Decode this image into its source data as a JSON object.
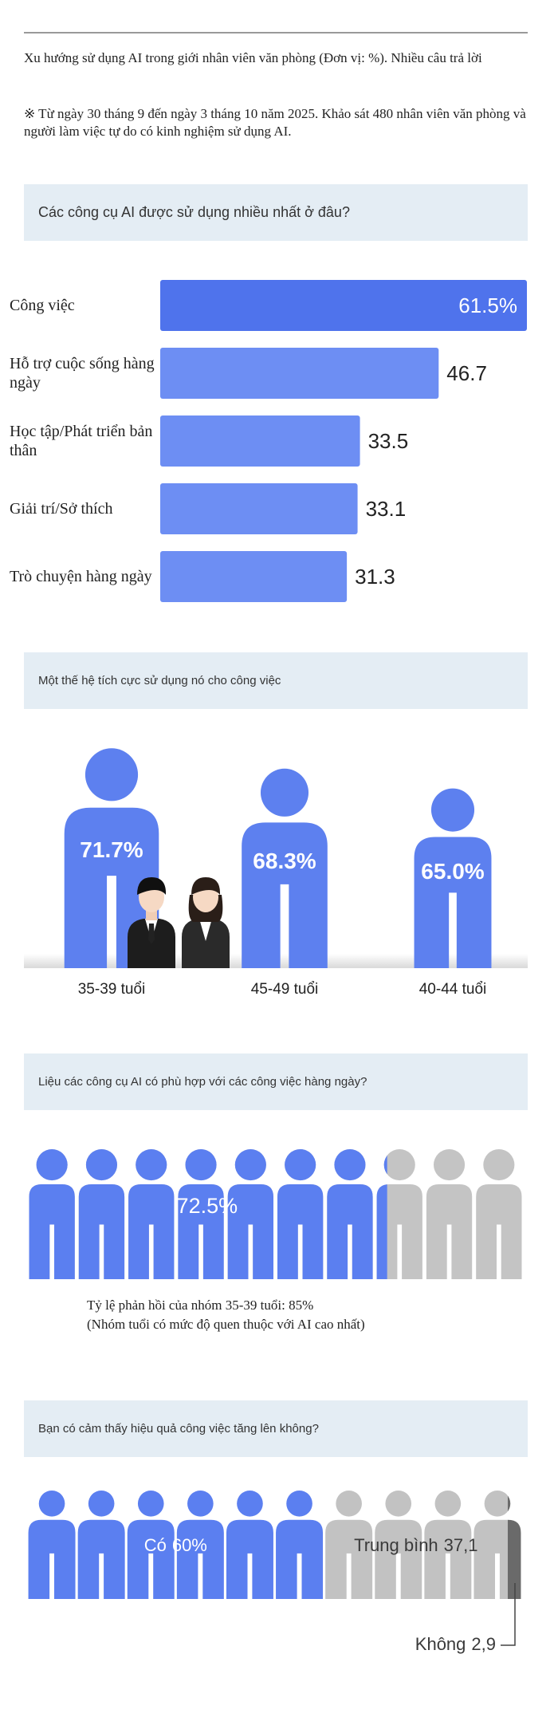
{
  "header": {
    "title": "Xu hướng sử dụng AI trong giới nhân viên văn phòng (Đơn vị: %). Nhiều câu trả lời",
    "note": "※ Từ ngày 30 tháng 9 đến ngày 3 tháng 10 năm 2025. Khảo sát 480 nhân viên văn phòng và người làm việc tự do có kinh nghiệm sử dụng AI."
  },
  "chart_data": [
    {
      "type": "bar",
      "title": "Các công cụ AI được sử dụng nhiều nhất ở đâu?",
      "categories": [
        "Công việc",
        "Hỗ trợ cuộc sống hàng ngày",
        "Học tập/Phát triển bản thân",
        "Giải trí/Sở thích",
        "Trò chuyện hàng ngày"
      ],
      "values": [
        61.5,
        46.7,
        33.5,
        33.1,
        31.3
      ],
      "value_labels": [
        "61.5%",
        "46.7",
        "33.5",
        "33.1",
        "31.3"
      ],
      "colors": [
        "#4f73ec",
        "#6d8ef3",
        "#6d8ef3",
        "#6d8ef3",
        "#6d8ef3"
      ],
      "xlim": [
        0,
        61.5
      ]
    },
    {
      "type": "figures",
      "title": "Một thế hệ tích cực sử dụng nó cho công việc",
      "categories": [
        "35-39 tuổi",
        "45-49 tuổi",
        "40-44 tuổi"
      ],
      "values": [
        71.7,
        68.3,
        65.0
      ],
      "value_labels": [
        "71.7%",
        "68.3%",
        "65.0%"
      ],
      "color": "#5d80ef",
      "ylim": [
        35,
        72
      ]
    },
    {
      "type": "pictogram",
      "title": "Liệu các công cụ AI có phù hợp với các công việc hàng ngày?",
      "values": [
        72.5
      ],
      "value_labels": [
        "72.5%"
      ],
      "color": "#5b7ff0",
      "rest_color": "#c4c4c4",
      "xlim": [
        0,
        100
      ],
      "annotations": [
        "Tỷ lệ phản hồi của nhóm 35-39 tuổi: 85%",
        "(Nhóm tuổi có mức độ quen thuộc với AI cao nhất)"
      ]
    },
    {
      "type": "stacked-pictogram",
      "title": "Bạn có cảm thấy hiệu quả công việc tăng lên không?",
      "categories": [
        "Có",
        "Trung bình",
        "Không"
      ],
      "values": [
        60,
        37.1,
        2.9
      ],
      "value_labels": [
        "60%",
        "37,1",
        "2,9"
      ],
      "colors": [
        "#5b7ff0",
        "#c2c2c2",
        "#6a6a6a"
      ],
      "xlim": [
        0,
        100
      ]
    }
  ]
}
